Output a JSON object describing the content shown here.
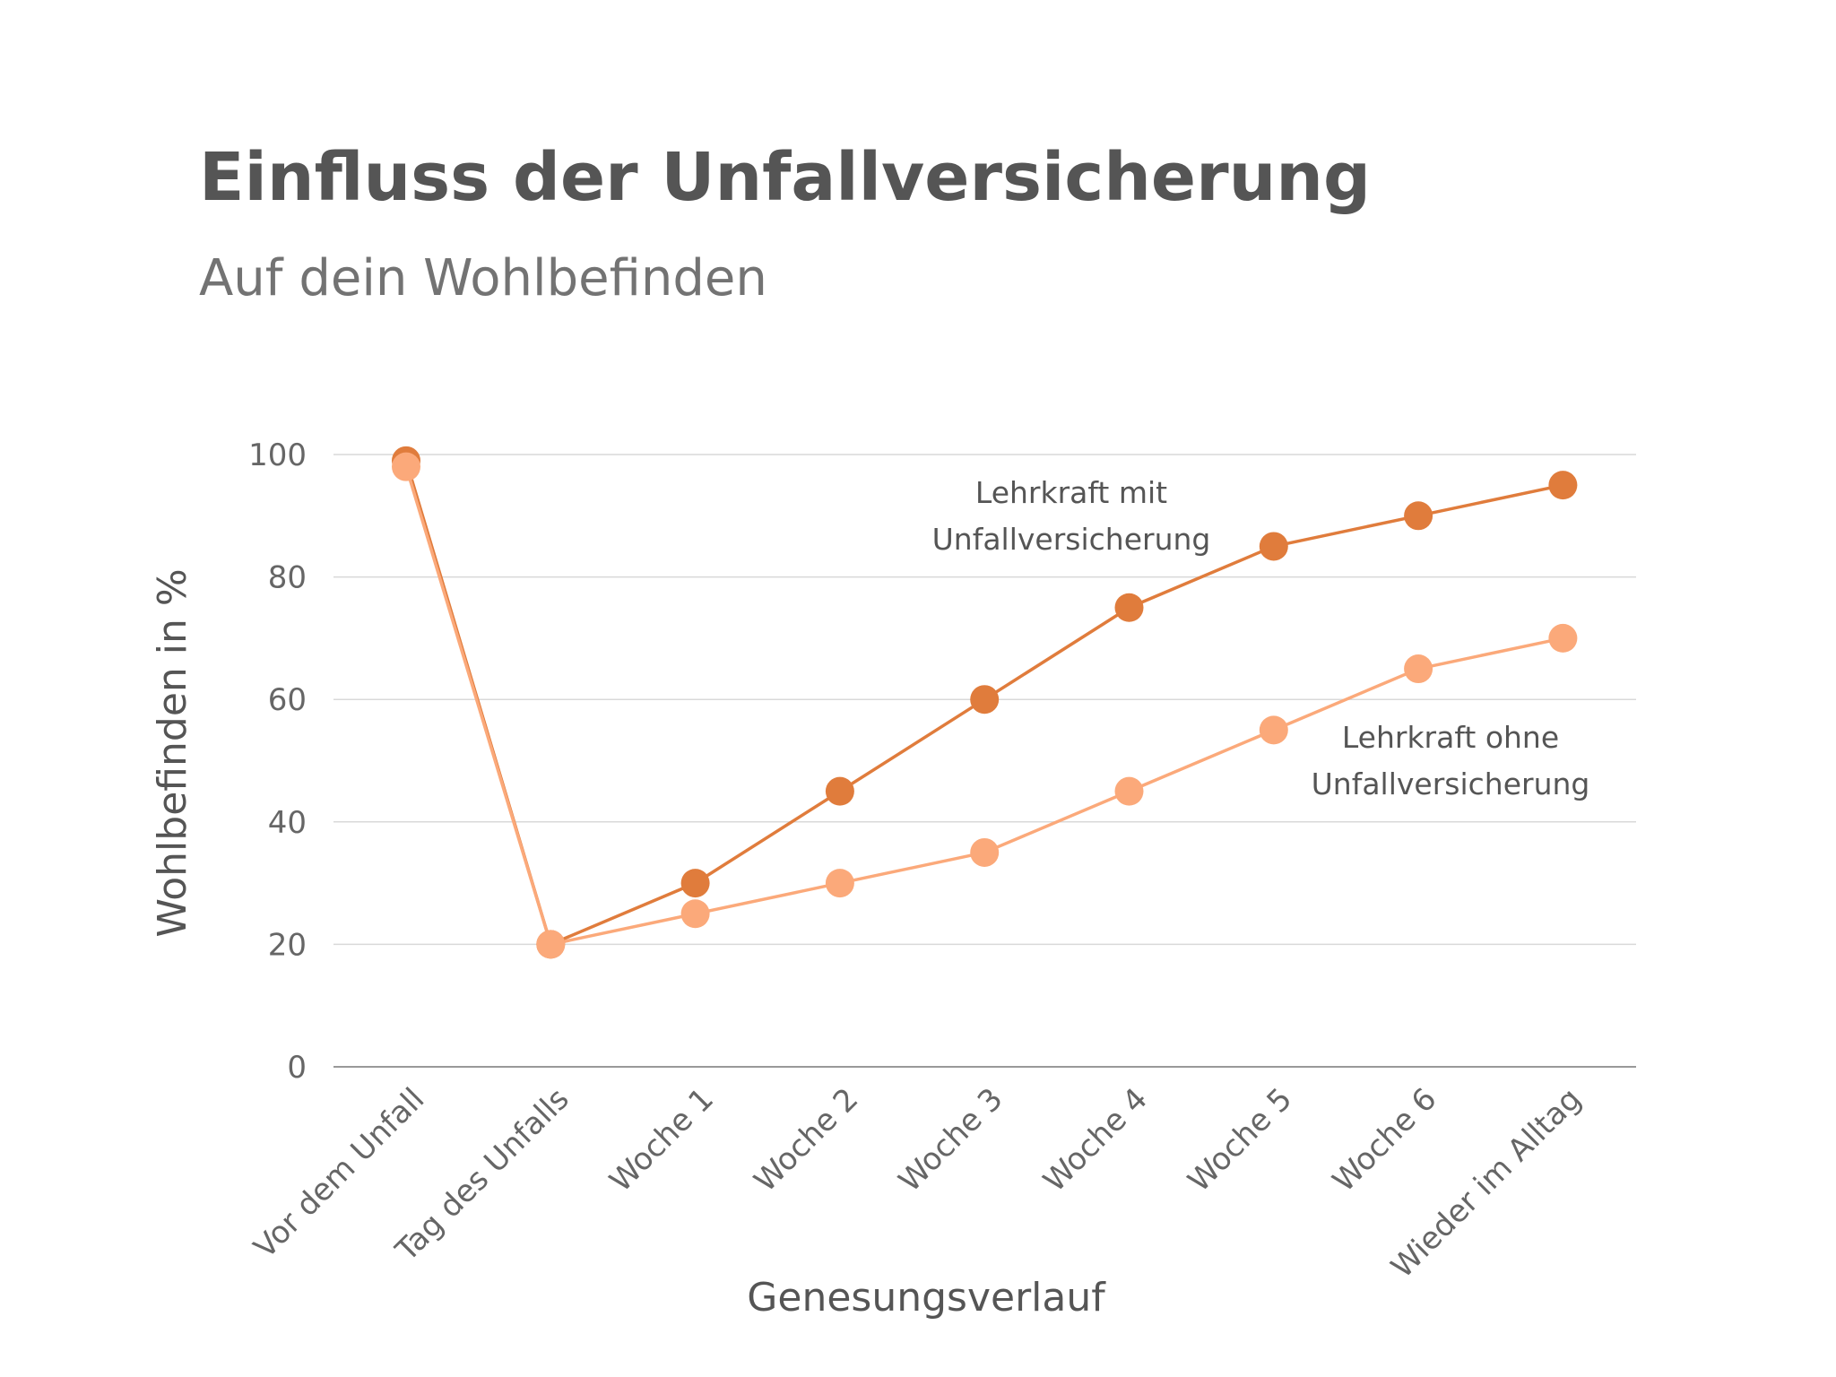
{
  "header": {
    "title": "Einfluss der Unfallversicherung",
    "subtitle": "Auf dein Wohlbefinden"
  },
  "chart_data": {
    "type": "line",
    "title": "Einfluss der Unfallversicherung",
    "subtitle": "Auf dein Wohlbefinden",
    "xlabel": "Genesungsverlauf",
    "ylabel": "Wohlbefinden in %",
    "ylim": [
      0,
      100
    ],
    "yticks": [
      0,
      20,
      40,
      60,
      80,
      100
    ],
    "grid": true,
    "categories": [
      "Vor dem Unfall",
      "Tag des Unfalls",
      "Woche 1",
      "Woche 2",
      "Woche 3",
      "Woche 4",
      "Woche 5",
      "Woche 6",
      "Wieder im Alltag"
    ],
    "series": [
      {
        "name": "Lehrkraft mit Unfallversicherung",
        "label_lines": [
          "Lehrkraft mit",
          "Unfallversicherung"
        ],
        "color": "#E07C3C",
        "values": [
          99,
          20,
          30,
          45,
          60,
          75,
          85,
          90,
          95
        ]
      },
      {
        "name": "Lehrkraft ohne Unfallversicherung",
        "label_lines": [
          "Lehrkraft ohne",
          "Unfallversicherung"
        ],
        "color": "#FBA97A",
        "values": [
          98,
          20,
          25,
          30,
          35,
          45,
          55,
          65,
          70
        ]
      }
    ]
  }
}
